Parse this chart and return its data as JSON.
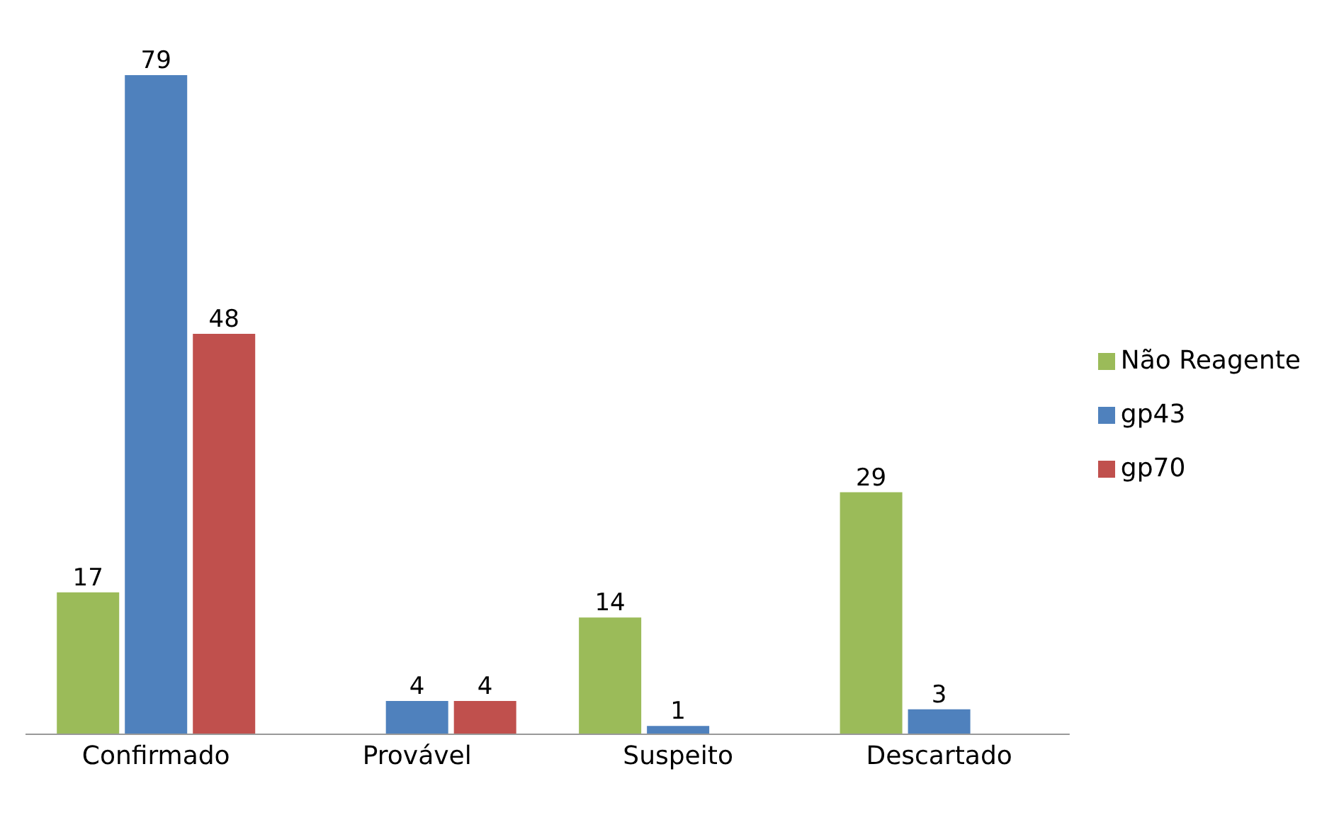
{
  "chart_data": {
    "type": "bar",
    "categories": [
      "Confirmado",
      "Provável",
      "Suspeito",
      "Descartado"
    ],
    "series": [
      {
        "name": "Não Reagente",
        "color": "#9bbb59",
        "values": [
          17,
          null,
          14,
          29
        ]
      },
      {
        "name": "gp43",
        "color": "#4f81bd",
        "values": [
          79,
          4,
          1,
          3
        ]
      },
      {
        "name": "gp70",
        "color": "#c0504d",
        "values": [
          48,
          4,
          null,
          null
        ]
      }
    ],
    "data_labels": true,
    "legend": "right",
    "grid": false
  }
}
